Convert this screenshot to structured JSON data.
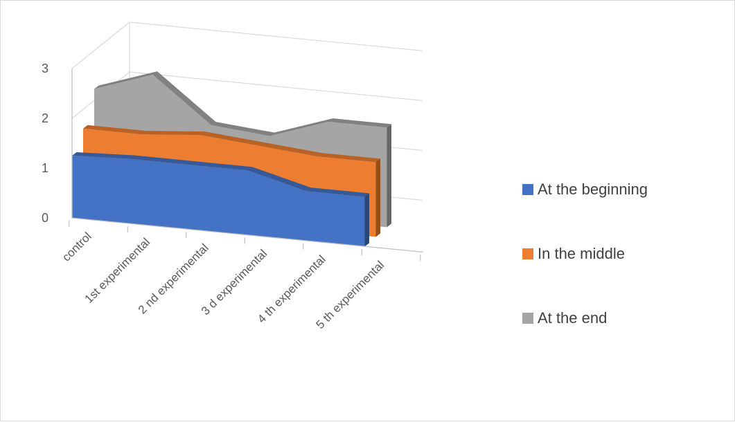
{
  "chart_data": {
    "type": "area",
    "subtype": "3d-area",
    "title": "",
    "xlabel": "",
    "ylabel": "",
    "ylim": [
      0,
      3
    ],
    "yticks": [
      0,
      1,
      2,
      3
    ],
    "grid": true,
    "legend_position": "right",
    "categories": [
      "control",
      "1st experimental",
      "2 nd experimental",
      "3 d experimental",
      "4 th experimental",
      "5 th experimental"
    ],
    "series": [
      {
        "name": "At the beginning",
        "color": "#4472c4",
        "values": [
          1.25,
          1.3,
          1.3,
          1.3,
          1.0,
          1.0
        ]
      },
      {
        "name": "In the middle",
        "color": "#ed7d31",
        "values": [
          1.6,
          1.6,
          1.7,
          1.6,
          1.5,
          1.5
        ]
      },
      {
        "name": "At the end",
        "color": "#a5a5a5",
        "values": [
          2.2,
          2.6,
          1.7,
          1.6,
          2.0,
          2.0
        ]
      }
    ]
  }
}
